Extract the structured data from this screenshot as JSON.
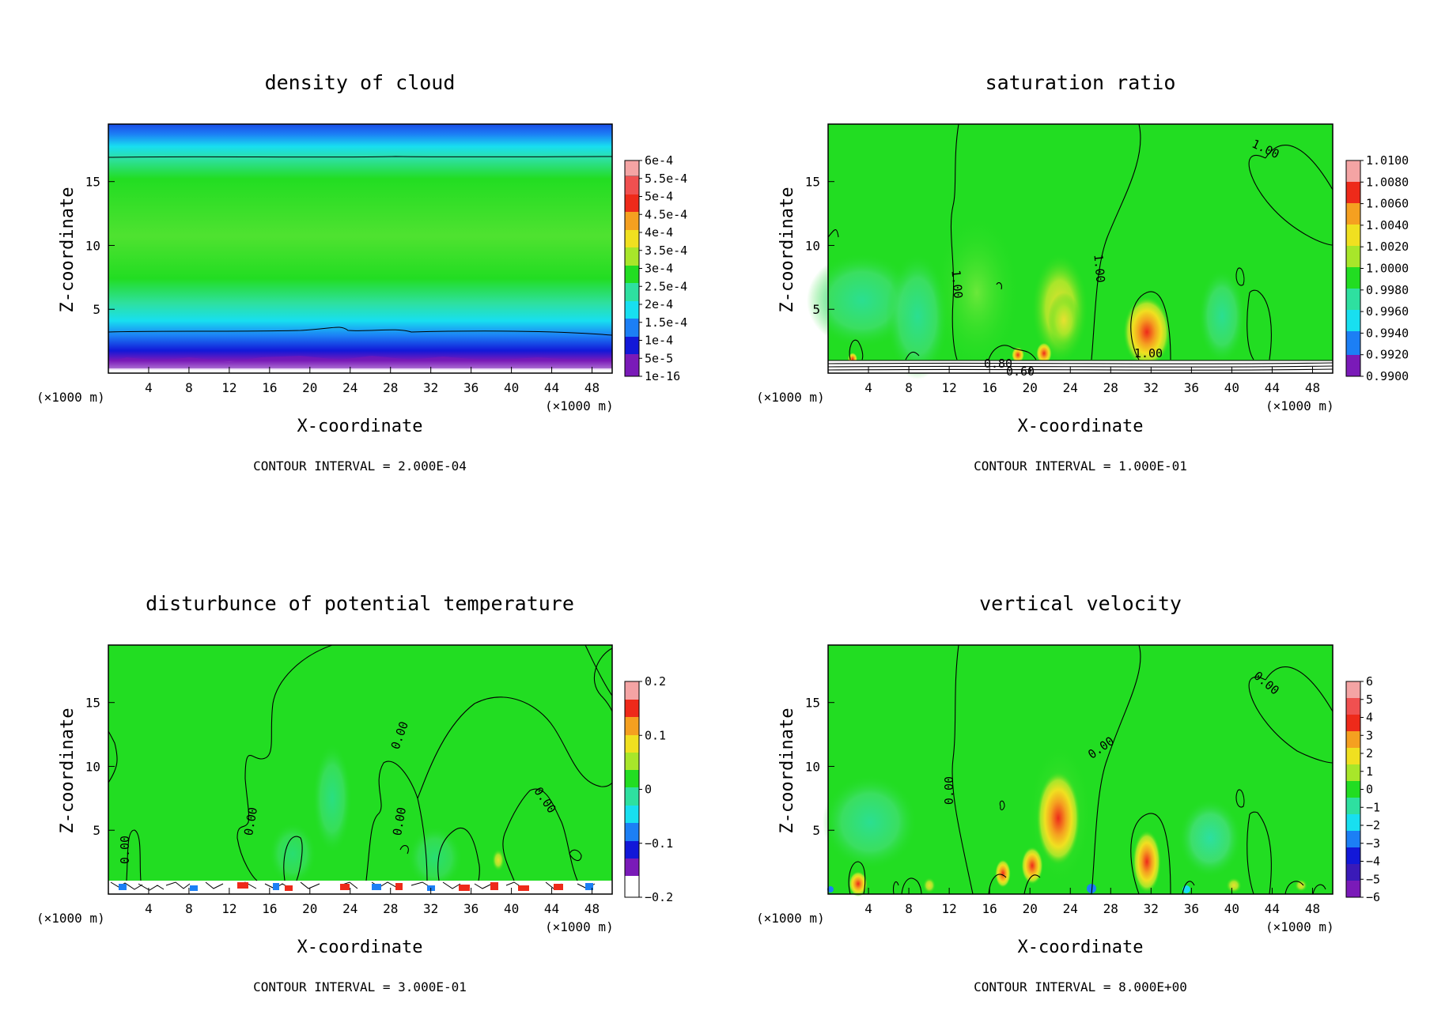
{
  "panel_labels": {
    "x_unit_left": "(×1000 m)",
    "x_unit_right": "(×1000 m)"
  },
  "colors": {
    "green": "#22dd22",
    "light_green": "#55e83a",
    "yellow_green": "#a8e62a",
    "yellow": "#f0e020",
    "orange": "#f5a020",
    "red": "#ee2a1a",
    "teal": "#2ee0a0",
    "cyan": "#18dff0",
    "blue": "#1c7ff5",
    "dark_blue": "#1218d8",
    "purple": "#7a1ab8",
    "pink": "#f4a4a4"
  },
  "chart_data": [
    {
      "type": "heatmap",
      "title": "density of cloud",
      "xlabel": "X-coordinate",
      "ylabel": "Z-coordinate",
      "xlim": [
        0,
        50
      ],
      "ylim": [
        0,
        19.5
      ],
      "xticks": [
        "4",
        "8",
        "12",
        "16",
        "20",
        "24",
        "28",
        "32",
        "36",
        "40",
        "44",
        "48"
      ],
      "yticks": [
        "5",
        "10",
        "15"
      ],
      "colorbar_ticks": [
        "6e-4",
        "5.5e-4",
        "5e-4",
        "4.5e-4",
        "4e-4",
        "3.5e-4",
        "3e-4",
        "2.5e-4",
        "2e-4",
        "1.5e-4",
        "1e-4",
        "5e-5",
        "1e-16"
      ],
      "contour_interval": "CONTOUR INTERVAL = 2.000E-04",
      "contour_labels": []
    },
    {
      "type": "heatmap",
      "title": "saturation ratio",
      "xlabel": "X-coordinate",
      "ylabel": "Z-coordinate",
      "xlim": [
        0,
        50
      ],
      "ylim": [
        0,
        19.5
      ],
      "xticks": [
        "4",
        "8",
        "12",
        "16",
        "20",
        "24",
        "28",
        "32",
        "36",
        "40",
        "44",
        "48"
      ],
      "yticks": [
        "5",
        "10",
        "15"
      ],
      "colorbar_ticks": [
        "1.0100",
        "1.0080",
        "1.0060",
        "1.0040",
        "1.0020",
        "1.0000",
        "0.9980",
        "0.9960",
        "0.9940",
        "0.9920",
        "0.9900"
      ],
      "contour_interval": "CONTOUR INTERVAL = 1.000E-01",
      "contour_labels": [
        "1.00",
        "1.00",
        "1.00",
        "1.00",
        "0.80",
        "0.60"
      ]
    },
    {
      "type": "heatmap",
      "title": "disturbunce of potential temperature",
      "xlabel": "X-coordinate",
      "ylabel": "Z-coordinate",
      "xlim": [
        0,
        50
      ],
      "ylim": [
        0,
        19.5
      ],
      "xticks": [
        "4",
        "8",
        "12",
        "16",
        "20",
        "24",
        "28",
        "32",
        "36",
        "40",
        "44",
        "48"
      ],
      "yticks": [
        "5",
        "10",
        "15"
      ],
      "colorbar_ticks": [
        "0.2",
        "0.1",
        "0",
        "−0.1",
        "−0.2"
      ],
      "contour_interval": "CONTOUR INTERVAL = 3.000E-01",
      "contour_labels": [
        "0.00",
        "0.00",
        "0.00",
        "0.00",
        "0.00"
      ]
    },
    {
      "type": "heatmap",
      "title": "vertical velocity",
      "xlabel": "X-coordinate",
      "ylabel": "Z-coordinate",
      "xlim": [
        0,
        50
      ],
      "ylim": [
        0,
        19.5
      ],
      "xticks": [
        "4",
        "8",
        "12",
        "16",
        "20",
        "24",
        "28",
        "32",
        "36",
        "40",
        "44",
        "48"
      ],
      "yticks": [
        "5",
        "10",
        "15"
      ],
      "colorbar_ticks": [
        "6",
        "5",
        "4",
        "3",
        "2",
        "1",
        "0",
        "−1",
        "−2",
        "−3",
        "−4",
        "−5",
        "−6"
      ],
      "contour_interval": "CONTOUR INTERVAL = 8.000E+00",
      "contour_labels": [
        "0.00",
        "0.00",
        "0.00"
      ]
    }
  ]
}
